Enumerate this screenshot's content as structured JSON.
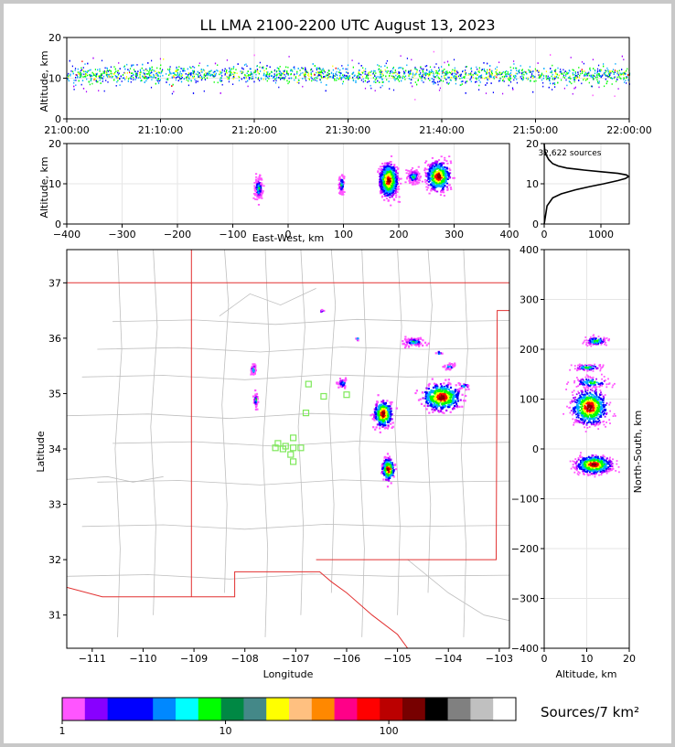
{
  "title": "LL LMA 2100-2200 UTC August 13, 2023",
  "colorbar_label": "Sources/7 km²",
  "chart_data": [
    {
      "id": "time-height",
      "type": "scatter",
      "ylabel": "Altitude, km",
      "x_ticks": [
        "21:00:00",
        "21:10:00",
        "21:20:00",
        "21:30:00",
        "21:40:00",
        "21:50:00",
        "22:00:00"
      ],
      "ylim": [
        0,
        20
      ],
      "y_ticks": [
        0,
        10,
        20
      ],
      "grid": true,
      "colors": [
        "#ff55ff",
        "#aa00ff",
        "#0000ff",
        "#00aaff",
        "#00ff00",
        "#ffff00",
        "#ff0000"
      ]
    },
    {
      "id": "ew-altitude",
      "type": "heatmap",
      "xlabel": "East-West, km",
      "ylabel": "Altitude, km",
      "xlim": [
        -400,
        400
      ],
      "ylim": [
        0,
        20
      ],
      "x_ticks": [
        -400,
        -300,
        -200,
        -100,
        0,
        100,
        200,
        300,
        400
      ],
      "y_ticks": [
        0,
        10,
        20
      ],
      "grid": true,
      "clusters": [
        {
          "x": -55,
          "y": 9,
          "dx": 6,
          "dy": 2.5,
          "n": 150
        },
        {
          "x": 95,
          "y": 10,
          "dx": 4,
          "dy": 2,
          "n": 90
        },
        {
          "x": 180,
          "y": 11,
          "dx": 14,
          "dy": 3.5,
          "n": 700
        },
        {
          "x": 225,
          "y": 12,
          "dx": 10,
          "dy": 1.5,
          "n": 150
        },
        {
          "x": 270,
          "y": 12,
          "dx": 18,
          "dy": 3,
          "n": 500
        }
      ]
    },
    {
      "id": "altitude-histogram",
      "type": "line",
      "annotation": "32,622 sources",
      "xlim": [
        0,
        1500
      ],
      "ylim": [
        0,
        20
      ],
      "x_ticks": [
        0,
        1000
      ],
      "y_ticks": [
        0,
        10,
        20
      ],
      "grid": true,
      "x": [
        0,
        50,
        150,
        300,
        550,
        800,
        1050,
        1300,
        1430,
        1490,
        1450,
        1300,
        1000,
        700,
        400,
        250,
        150,
        80,
        40,
        15,
        5,
        0
      ],
      "y": [
        0,
        4.5,
        6.5,
        7.5,
        8.5,
        9.3,
        10.0,
        10.8,
        11.3,
        11.8,
        12.2,
        12.6,
        13.0,
        13.4,
        13.9,
        14.4,
        15.0,
        16.0,
        17.0,
        18.0,
        19.0,
        20.0
      ]
    },
    {
      "id": "plan-view",
      "type": "heatmap",
      "xlabel": "Longitude",
      "ylabel": "Latitude",
      "xlim": [
        -111.5,
        -102.8
      ],
      "ylim": [
        30.4,
        37.6
      ],
      "x_ticks": [
        -111,
        -110,
        -109,
        -108,
        -107,
        -106,
        -105,
        -104,
        -103
      ],
      "y_ticks": [
        31,
        32,
        33,
        34,
        35,
        36,
        37
      ],
      "clusters": [
        {
          "lon": -107.85,
          "lat": 35.45,
          "dlon": 0.05,
          "dlat": 0.1,
          "n": 40
        },
        {
          "lon": -107.8,
          "lat": 34.9,
          "dlon": 0.04,
          "dlat": 0.12,
          "n": 40
        },
        {
          "lon": -106.5,
          "lat": 36.5,
          "dlon": 0.03,
          "dlat": 0.03,
          "n": 8
        },
        {
          "lon": -106.1,
          "lat": 35.2,
          "dlon": 0.08,
          "dlat": 0.08,
          "n": 40
        },
        {
          "lon": -105.3,
          "lat": 34.65,
          "dlon": 0.15,
          "dlat": 0.2,
          "n": 320
        },
        {
          "lon": -105.2,
          "lat": 33.65,
          "dlon": 0.1,
          "dlat": 0.17,
          "n": 250
        },
        {
          "lon": -104.15,
          "lat": 34.95,
          "dlon": 0.32,
          "dlat": 0.2,
          "n": 420
        },
        {
          "lon": -104.7,
          "lat": 35.95,
          "dlon": 0.2,
          "dlat": 0.07,
          "n": 80
        },
        {
          "lon": -104.0,
          "lat": 35.5,
          "dlon": 0.1,
          "dlat": 0.05,
          "n": 30
        },
        {
          "lon": -104.2,
          "lat": 35.75,
          "dlon": 0.05,
          "dlat": 0.03,
          "n": 10
        },
        {
          "lon": -105.8,
          "lat": 36.0,
          "dlon": 0.03,
          "dlat": 0.03,
          "n": 6
        },
        {
          "lon": -103.7,
          "lat": 35.15,
          "dlon": 0.1,
          "dlat": 0.05,
          "n": 20
        }
      ],
      "stations": [
        [
          -106.75,
          35.17
        ],
        [
          -106.45,
          34.95
        ],
        [
          -106.0,
          34.98
        ],
        [
          -106.8,
          34.65
        ],
        [
          -107.05,
          34.2
        ],
        [
          -107.2,
          34.05
        ],
        [
          -107.05,
          34.02
        ],
        [
          -106.9,
          34.02
        ],
        [
          -107.35,
          34.1
        ],
        [
          -107.4,
          34.02
        ],
        [
          -107.25,
          34.0
        ],
        [
          -107.1,
          33.9
        ],
        [
          -107.05,
          33.77
        ]
      ],
      "station_color": "#7ee85a"
    },
    {
      "id": "altitude-ns",
      "type": "heatmap",
      "xlabel": "Altitude, km",
      "ylabel": "North-South, km",
      "xlim": [
        0,
        20
      ],
      "ylim": [
        -400,
        400
      ],
      "x_ticks": [
        0,
        10,
        20
      ],
      "y_ticks": [
        -400,
        -300,
        -200,
        -100,
        0,
        100,
        200,
        300,
        400
      ],
      "grid": true,
      "clusters": [
        {
          "x": 12,
          "y": 218,
          "dx": 2.5,
          "dy": 8,
          "n": 110
        },
        {
          "x": 10,
          "y": 165,
          "dx": 3,
          "dy": 6,
          "n": 90
        },
        {
          "x": 11,
          "y": 135,
          "dx": 4,
          "dy": 10,
          "n": 120
        },
        {
          "x": 10.5,
          "y": 85,
          "dx": 3.5,
          "dy": 30,
          "n": 700
        },
        {
          "x": 11.5,
          "y": -30,
          "dx": 3.5,
          "dy": 15,
          "n": 650
        }
      ]
    }
  ],
  "colorbar": {
    "tick_labels": [
      "1",
      "10",
      "100"
    ],
    "colors": [
      "#ff55ff",
      "#8800ff",
      "#0000ff",
      "#0000ff",
      "#0088ff",
      "#00ffff",
      "#00ff00",
      "#008844",
      "#448888",
      "#ffff00",
      "#ffc080",
      "#ff8800",
      "#ff0088",
      "#ff0000",
      "#bb0000",
      "#770000",
      "#000000",
      "#808080",
      "#c0c0c0",
      "#ffffff"
    ]
  }
}
